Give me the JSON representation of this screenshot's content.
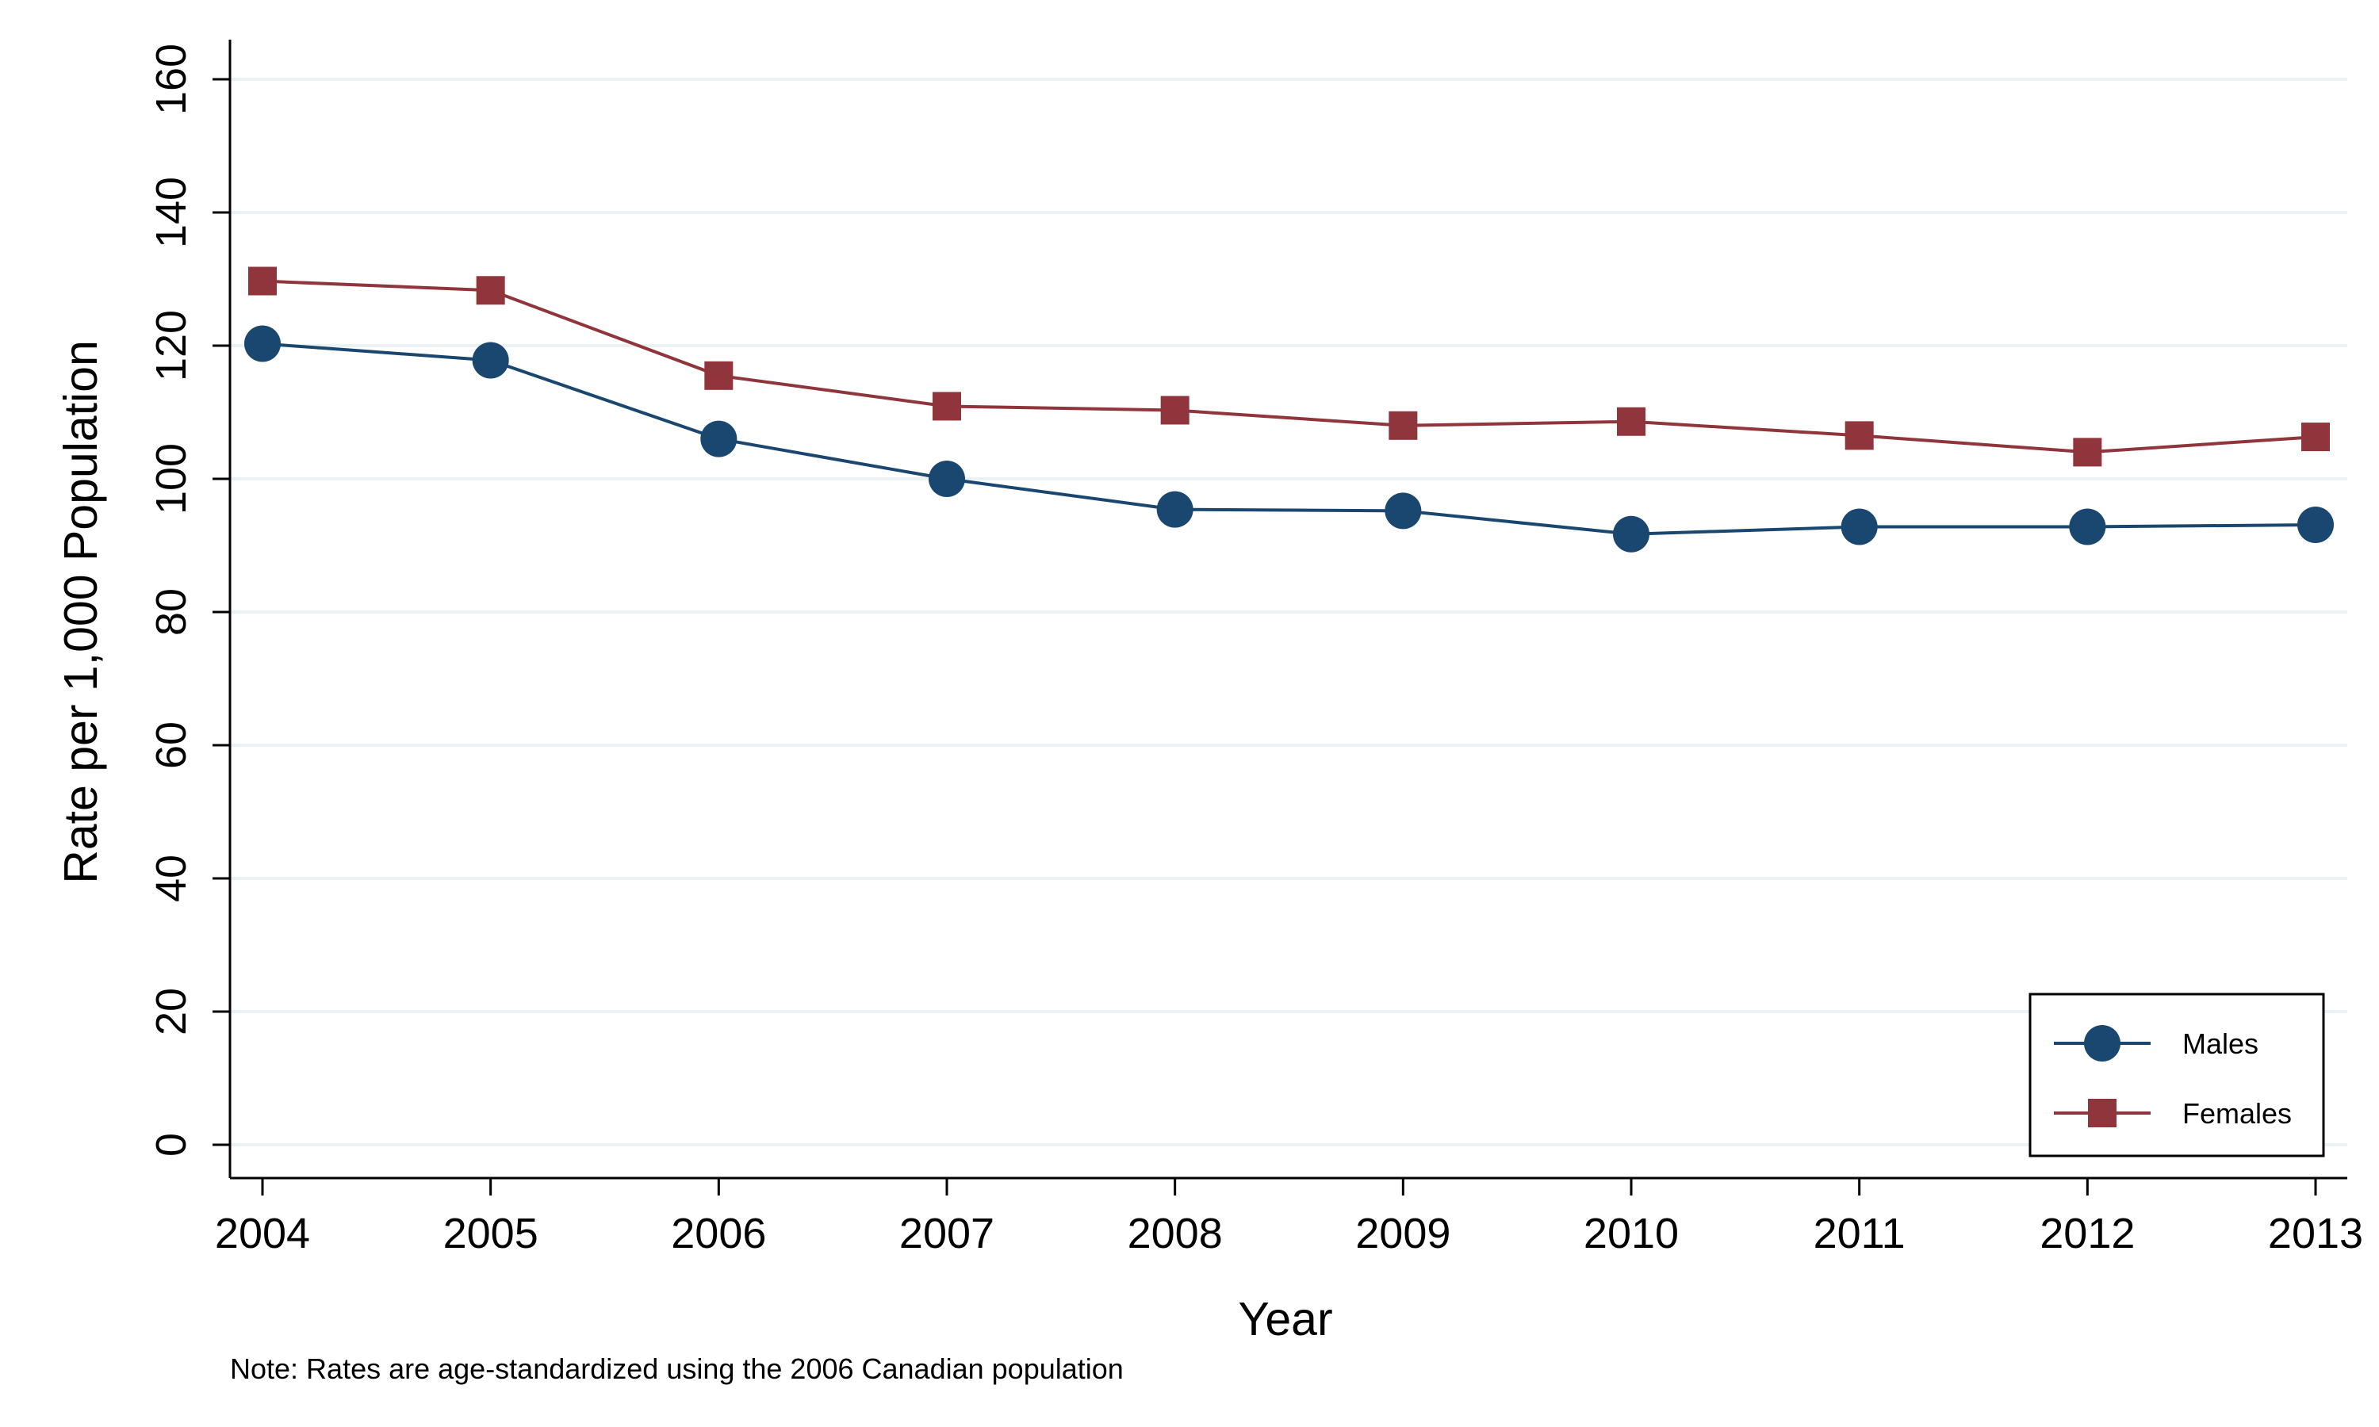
{
  "chart_data": {
    "type": "line",
    "title": "",
    "xlabel": "Year",
    "ylabel": "Rate per 1,000 Population",
    "x": [
      2004,
      2005,
      2006,
      2007,
      2008,
      2009,
      2010,
      2011,
      2012,
      2013
    ],
    "xticks": [
      "2004",
      "2005",
      "2006",
      "2007",
      "2008",
      "2009",
      "2010",
      "2011",
      "2012",
      "2013"
    ],
    "ylim": [
      0,
      160
    ],
    "yticks": [
      "0",
      "20",
      "40",
      "60",
      "80",
      "100",
      "120",
      "140",
      "160"
    ],
    "grid": true,
    "legend_position": "bottom-right",
    "series": [
      {
        "name": "Males",
        "marker": "circle",
        "color": "#1a476f",
        "values": [
          120.3,
          117.8,
          106.0,
          100.0,
          95.4,
          95.2,
          91.7,
          92.8,
          92.8,
          93.1
        ]
      },
      {
        "name": "Females",
        "marker": "square",
        "color": "#90353b",
        "values": [
          129.7,
          128.3,
          115.5,
          110.9,
          110.3,
          108.0,
          108.6,
          106.5,
          104.0,
          106.3
        ]
      }
    ],
    "note": "Note: Rates are age-standardized using the 2006 Canadian population"
  },
  "colors": {
    "grid": "#eaf2f3",
    "axis": "#000000"
  }
}
